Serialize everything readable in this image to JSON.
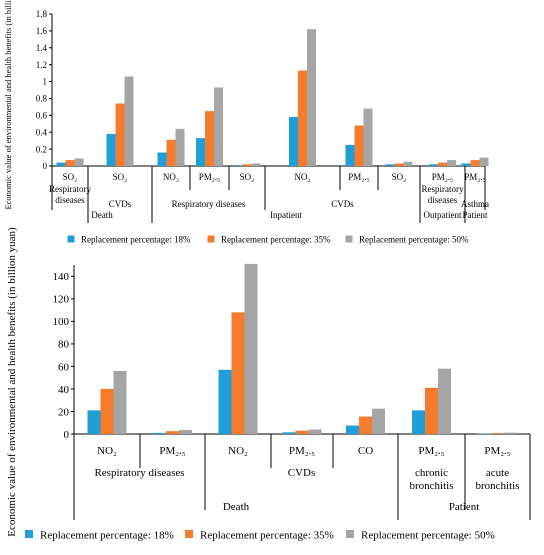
{
  "colors": {
    "s18": "#1f9ed8",
    "s35": "#f47c2c",
    "s50": "#a5a5a5",
    "axis": "#000000"
  },
  "chart_data": [
    {
      "type": "bar",
      "ylabel": "Economic value of environmental and health benefits (in billion yuan)",
      "ylim": [
        0,
        1.8
      ],
      "yticks": [
        "0",
        "0.2",
        "0.4",
        "0.6",
        "0.8",
        "1",
        "1.2",
        "1.4",
        "1.6",
        "1.8"
      ],
      "categories": [
        "SO₂",
        "SO₂",
        "NO₂",
        "PM₂.₅",
        "SO₂",
        "NO₂",
        "PM₂.₅",
        "SO₂",
        "PM₂.₅",
        "PM₂.₅"
      ],
      "series": [
        {
          "name": "Replacement percentage: 18%",
          "values": [
            0.04,
            0.38,
            0.16,
            0.33,
            0.01,
            0.58,
            0.25,
            0.02,
            0.02,
            0.03
          ]
        },
        {
          "name": "Replacement percentage: 35%",
          "values": [
            0.07,
            0.74,
            0.31,
            0.65,
            0.02,
            1.13,
            0.48,
            0.03,
            0.04,
            0.07
          ]
        },
        {
          "name": "Replacement percentage: 50%",
          "values": [
            0.09,
            1.06,
            0.44,
            0.93,
            0.03,
            1.62,
            0.68,
            0.05,
            0.07,
            0.1
          ]
        }
      ],
      "group_labels": [
        {
          "text": "Respiratory diseases",
          "from": 0,
          "to": 0
        },
        {
          "text": "CVDs",
          "from": 1,
          "to": 1
        },
        {
          "text": "Respiratory diseases",
          "from": 2,
          "to": 4
        },
        {
          "text": "CVDs",
          "from": 5,
          "to": 7
        },
        {
          "text": "Respiratory diseases",
          "from": 8,
          "to": 8
        },
        {
          "text": "Asthma",
          "from": 9,
          "to": 9
        }
      ],
      "outer_labels": [
        {
          "text": "Death",
          "from": 0,
          "to": 1
        },
        {
          "text": "Inpatient",
          "from": 2,
          "to": 7
        },
        {
          "text": "Outpatient",
          "from": 8,
          "to": 8
        },
        {
          "text": "Patient",
          "from": 9,
          "to": 9
        }
      ],
      "legend": "bottom"
    },
    {
      "type": "bar",
      "ylabel": "Economic value of environmental and health benefits (in billion yuan)",
      "ylim": [
        0,
        150
      ],
      "yticks": [
        "0",
        "20",
        "40",
        "60",
        "80",
        "100",
        "120",
        "140"
      ],
      "categories": [
        "NO₂",
        "PM₂.₅",
        "NO₂",
        "PM₂.₅",
        "CO",
        "PM₂.₅",
        "PM₂.₅"
      ],
      "series": [
        {
          "name": "Replacement percentage: 18%",
          "values": [
            21,
            1,
            57,
            1.5,
            7.5,
            21,
            0.4
          ]
        },
        {
          "name": "Replacement percentage: 35%",
          "values": [
            40,
            2.5,
            108,
            3,
            15.5,
            41,
            0.8
          ]
        },
        {
          "name": "Replacement percentage: 50%",
          "values": [
            56,
            3.5,
            151,
            4,
            22.5,
            58,
            1.2
          ]
        }
      ],
      "group_labels": [
        {
          "text": "Respiratory diseases",
          "from": 0,
          "to": 1
        },
        {
          "text": "CVDs",
          "from": 2,
          "to": 4
        },
        {
          "text": "chronic\nbronchitis",
          "from": 5,
          "to": 5
        },
        {
          "text": "acute\nbronchitis",
          "from": 6,
          "to": 6
        }
      ],
      "outer_labels": [
        {
          "text": "Death",
          "from": 0,
          "to": 4
        },
        {
          "text": "Patient",
          "from": 5,
          "to": 6
        }
      ],
      "legend": "bottom"
    }
  ]
}
